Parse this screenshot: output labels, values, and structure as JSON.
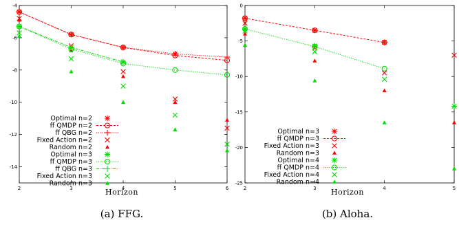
{
  "chart_data": [
    {
      "type": "line",
      "caption": "(a) FFG.",
      "xlabel": "Horizon",
      "ylabel": "",
      "xlim": [
        2,
        6
      ],
      "ylim": [
        -15,
        -4
      ],
      "xticks": [
        2,
        3,
        4,
        5,
        6
      ],
      "yticks": [
        -4,
        -6,
        -8,
        -10,
        -12,
        -14
      ],
      "legend_position": "bottom-left",
      "series": [
        {
          "name": "Optimal n=2",
          "color": "#ff0000",
          "marker": "asterisk",
          "line": "none",
          "x": [
            2,
            3,
            4,
            5
          ],
          "y": [
            -4.4,
            -5.8,
            -6.6,
            -7.0
          ]
        },
        {
          "name": "ff QMDP n=2",
          "color": "#ff0000",
          "marker": "circle",
          "line": "dashed",
          "x": [
            2,
            3,
            4,
            5,
            6
          ],
          "y": [
            -4.4,
            -5.8,
            -6.6,
            -7.1,
            -7.4
          ]
        },
        {
          "name": "ff QBG n=2",
          "color": "#ff0000",
          "marker": "plus",
          "line": "dotted",
          "x": [
            2,
            3,
            4,
            5,
            6
          ],
          "y": [
            -4.4,
            -5.8,
            -6.6,
            -7.0,
            -7.2
          ]
        },
        {
          "name": "Fixed Action n=2",
          "color": "#ff0000",
          "marker": "cross",
          "line": "none",
          "x": [
            2,
            3,
            4,
            5,
            6
          ],
          "y": [
            -4.8,
            -6.5,
            -8.1,
            -9.8,
            -11.6
          ]
        },
        {
          "name": "Random n=2",
          "color": "#ff0000",
          "marker": "triangle",
          "line": "none",
          "x": [
            2,
            3,
            4,
            5,
            6
          ],
          "y": [
            -4.9,
            -6.8,
            -8.4,
            -10.0,
            -11.1
          ]
        },
        {
          "name": "Optimal n=3",
          "color": "#00dd00",
          "marker": "asterisk",
          "line": "none",
          "x": [
            2,
            3,
            4
          ],
          "y": [
            -5.3,
            -6.6,
            -7.5
          ]
        },
        {
          "name": "ff QMDP n=3",
          "color": "#00dd00",
          "marker": "circle",
          "line": "dotted",
          "x": [
            2,
            3,
            4,
            5,
            6
          ],
          "y": [
            -5.3,
            -6.7,
            -7.6,
            -8.0,
            -8.3
          ]
        },
        {
          "name": "ff QBG n=3",
          "color": "#00dd00",
          "marker": "plus",
          "line": "dashdot",
          "x": [
            2,
            3,
            4
          ],
          "y": [
            -5.3,
            -6.6,
            -7.5
          ]
        },
        {
          "name": "Fixed Action n=3",
          "color": "#00dd00",
          "marker": "cross",
          "line": "none",
          "x": [
            2,
            3,
            4,
            5,
            6
          ],
          "y": [
            -5.7,
            -7.3,
            -9.0,
            -10.8,
            -12.6
          ]
        },
        {
          "name": "Random n=3",
          "color": "#00dd00",
          "marker": "triangle",
          "line": "none",
          "x": [
            2,
            3,
            4,
            5,
            6
          ],
          "y": [
            -5.9,
            -8.1,
            -10.0,
            -11.7,
            -13.0
          ]
        }
      ]
    },
    {
      "type": "line",
      "caption": "(b) Aloha.",
      "xlabel": "Horizon",
      "ylabel": "",
      "xlim": [
        2,
        5
      ],
      "ylim": [
        -25,
        0
      ],
      "xticks": [
        2,
        3,
        4,
        5
      ],
      "yticks": [
        0,
        -5,
        -10,
        -15,
        -20,
        -25
      ],
      "legend_position": "bottom-left",
      "series": [
        {
          "name": "Optimal n=3",
          "color": "#ff0000",
          "marker": "asterisk",
          "line": "none",
          "x": [
            2,
            3,
            4
          ],
          "y": [
            -1.8,
            -3.5,
            -5.2
          ]
        },
        {
          "name": "ff QMDP n=3",
          "color": "#ff0000",
          "marker": "circle",
          "line": "dashed",
          "x": [
            2,
            3,
            4
          ],
          "y": [
            -1.8,
            -3.5,
            -5.2
          ]
        },
        {
          "name": "Fixed Action n=3",
          "color": "#ff0000",
          "marker": "cross",
          "line": "none",
          "x": [
            2,
            3,
            4,
            5
          ],
          "y": [
            -2.5,
            -6.0,
            -9.5,
            -7.0
          ]
        },
        {
          "name": "Random n=3",
          "color": "#ff0000",
          "marker": "triangle",
          "line": "none",
          "x": [
            2,
            3,
            4,
            5
          ],
          "y": [
            -4.0,
            -7.8,
            -12.0,
            -16.5
          ]
        },
        {
          "name": "Optimal n=4",
          "color": "#00dd00",
          "marker": "asterisk",
          "line": "none",
          "x": [
            2,
            3,
            5
          ],
          "y": [
            -3.3,
            -5.7,
            -14.2
          ]
        },
        {
          "name": "ff QMDP n=4",
          "color": "#00dd00",
          "marker": "circle",
          "line": "dotted",
          "x": [
            2,
            3,
            4
          ],
          "y": [
            -3.3,
            -5.8,
            -8.9
          ]
        },
        {
          "name": "Fixed Action n=4",
          "color": "#00dd00",
          "marker": "cross",
          "line": "none",
          "x": [
            2,
            3,
            4
          ],
          "y": [
            -3.6,
            -6.5,
            -10.4
          ]
        },
        {
          "name": "Random n=4",
          "color": "#00dd00",
          "marker": "triangle",
          "line": "none",
          "x": [
            2,
            3,
            4,
            5
          ],
          "y": [
            -5.6,
            -10.6,
            -16.5,
            -23.0
          ]
        }
      ]
    }
  ]
}
